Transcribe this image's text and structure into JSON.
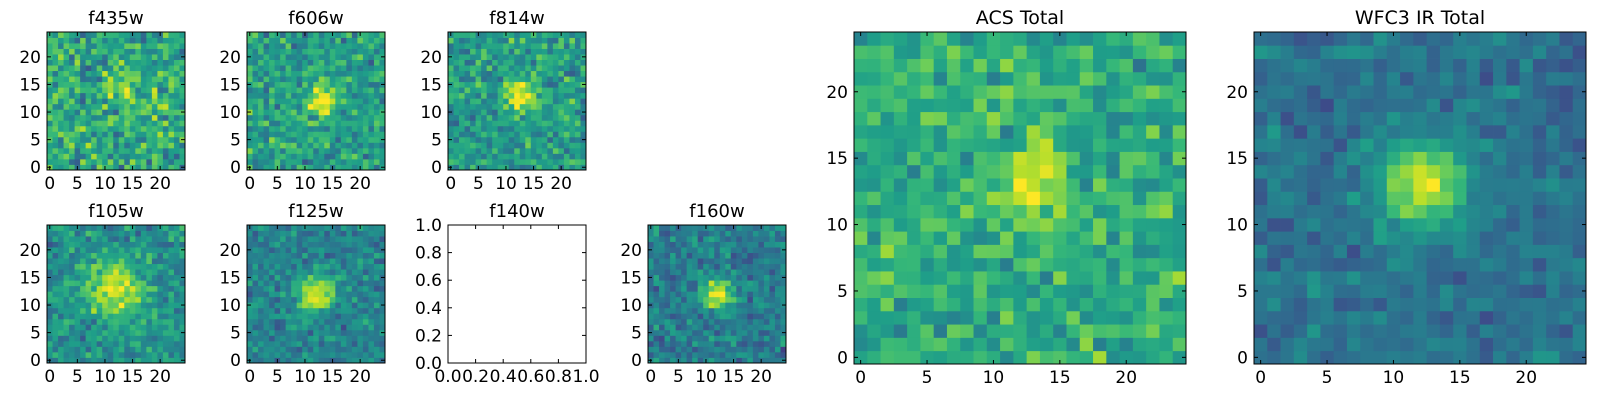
{
  "chart_data": [
    {
      "type": "heatmap",
      "title": "f435w",
      "grid_size": 25,
      "xlim": [
        -0.5,
        24.5
      ],
      "ylim": [
        -0.5,
        24.5
      ],
      "x_ticks": [
        0,
        5,
        10,
        15,
        20
      ],
      "y_ticks": [
        0,
        5,
        10,
        15,
        20
      ],
      "source": {
        "center": [
          13,
          14
        ],
        "sigma": 2.0,
        "amplitude": 0.25
      },
      "background": 0.6,
      "noise": 0.38,
      "colormap": "viridis"
    },
    {
      "type": "heatmap",
      "title": "f606w",
      "grid_size": 25,
      "xlim": [
        -0.5,
        24.5
      ],
      "ylim": [
        -0.5,
        24.5
      ],
      "x_ticks": [
        0,
        5,
        10,
        15,
        20
      ],
      "y_ticks": [
        0,
        5,
        10,
        15,
        20
      ],
      "source": {
        "center": [
          13,
          12
        ],
        "sigma": 1.8,
        "amplitude": 0.5
      },
      "background": 0.55,
      "noise": 0.33,
      "colormap": "viridis"
    },
    {
      "type": "heatmap",
      "title": "f814w",
      "grid_size": 25,
      "xlim": [
        -0.5,
        24.5
      ],
      "ylim": [
        -0.5,
        24.5
      ],
      "x_ticks": [
        0,
        5,
        10,
        15,
        20
      ],
      "y_ticks": [
        0,
        5,
        10,
        15,
        20
      ],
      "source": {
        "center": [
          13,
          13
        ],
        "sigma": 2.0,
        "amplitude": 0.5
      },
      "background": 0.55,
      "noise": 0.32,
      "colormap": "viridis"
    },
    {
      "type": "heatmap",
      "title": "f105w",
      "grid_size": 25,
      "xlim": [
        -0.5,
        24.5
      ],
      "ylim": [
        -0.5,
        24.5
      ],
      "x_ticks": [
        0,
        5,
        10,
        15,
        20
      ],
      "y_ticks": [
        0,
        5,
        10,
        15,
        20
      ],
      "source": {
        "center": [
          12,
          13
        ],
        "sigma": 3.5,
        "amplitude": 0.5
      },
      "background": 0.5,
      "noise": 0.28,
      "colormap": "viridis"
    },
    {
      "type": "heatmap",
      "title": "f125w",
      "grid_size": 25,
      "xlim": [
        -0.5,
        24.5
      ],
      "ylim": [
        -0.5,
        24.5
      ],
      "x_ticks": [
        0,
        5,
        10,
        15,
        20
      ],
      "y_ticks": [
        0,
        5,
        10,
        15,
        20
      ],
      "source": {
        "center": [
          12,
          12
        ],
        "sigma": 2.2,
        "amplitude": 0.55
      },
      "background": 0.45,
      "noise": 0.25,
      "colormap": "viridis"
    },
    {
      "type": "empty",
      "title": "f140w",
      "xlim": [
        0.0,
        1.0
      ],
      "ylim": [
        0.0,
        1.0
      ],
      "x_ticks": [
        "0.0",
        "0.2",
        "0.4",
        "0.6",
        "0.8",
        "1.0"
      ],
      "y_ticks": [
        "0.0",
        "0.2",
        "0.4",
        "0.6",
        "0.8",
        "1.0"
      ]
    },
    {
      "type": "heatmap",
      "title": "f160w",
      "grid_size": 25,
      "xlim": [
        -0.5,
        24.5
      ],
      "ylim": [
        -0.5,
        24.5
      ],
      "x_ticks": [
        0,
        5,
        10,
        15,
        20
      ],
      "y_ticks": [
        0,
        5,
        10,
        15,
        20
      ],
      "source": {
        "center": [
          12,
          12
        ],
        "sigma": 2.0,
        "amplitude": 0.55
      },
      "background": 0.42,
      "noise": 0.25,
      "colormap": "viridis"
    },
    {
      "type": "heatmap",
      "title": "ACS Total",
      "grid_size": 25,
      "xlim": [
        -0.5,
        24.5
      ],
      "ylim": [
        -0.5,
        24.5
      ],
      "x_ticks": [
        0,
        5,
        10,
        15,
        20
      ],
      "y_ticks": [
        0,
        5,
        10,
        15,
        20
      ],
      "source": {
        "center": [
          13,
          13
        ],
        "sigma": 1.8,
        "amplitude": 0.35
      },
      "background": 0.62,
      "noise": 0.28,
      "colormap": "viridis"
    },
    {
      "type": "heatmap",
      "title": "WFC3 IR Total",
      "grid_size": 25,
      "xlim": [
        -0.5,
        24.5
      ],
      "ylim": [
        -0.5,
        24.5
      ],
      "x_ticks": [
        0,
        5,
        10,
        15,
        20
      ],
      "y_ticks": [
        0,
        5,
        10,
        15,
        20
      ],
      "source": {
        "center": [
          12,
          13
        ],
        "sigma": 2.3,
        "amplitude": 0.55
      },
      "background": 0.38,
      "noise": 0.18,
      "colormap": "viridis"
    }
  ]
}
